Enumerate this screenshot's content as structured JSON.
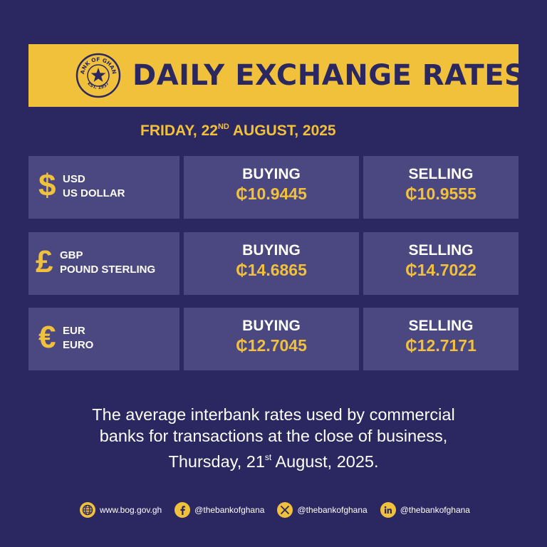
{
  "header": {
    "seal_text_top": "BANK OF GHANA",
    "seal_text_bottom": "EST. 1957",
    "title": "DAILY EXCHANGE RATES"
  },
  "date": {
    "prefix": "FRIDAY, 22",
    "suffix": "ND",
    "rest": " AUGUST, 2025"
  },
  "rates": [
    {
      "symbol": "$",
      "code": "USD",
      "name": "US DOLLAR",
      "buying_label": "BUYING",
      "buying": "₵10.9445",
      "selling_label": "SELLING",
      "selling": "₵10.9555"
    },
    {
      "symbol": "£",
      "code": "GBP",
      "name": "POUND STERLING",
      "buying_label": "BUYING",
      "buying": "₵14.6865",
      "selling_label": "SELLING",
      "selling": "₵14.7022"
    },
    {
      "symbol": "€",
      "code": "EUR",
      "name": "EURO",
      "buying_label": "BUYING",
      "buying": "₵12.7045",
      "selling_label": "SELLING",
      "selling": "₵12.7171"
    }
  ],
  "note": {
    "line1": "The average interbank rates used by commercial",
    "line2": "banks for transactions at the close of business,",
    "line3_prefix": "Thursday, 21",
    "line3_suffix": "st",
    "line3_rest": " August, 2025."
  },
  "footer": {
    "website": "www.bog.gov.gh",
    "facebook": "@thebankofghana",
    "x": "@thebankofghana",
    "linkedin": "@thebankofghana"
  },
  "colors": {
    "background": "#2b2760",
    "accent": "#f2c13c",
    "cell": "#4b4781"
  }
}
